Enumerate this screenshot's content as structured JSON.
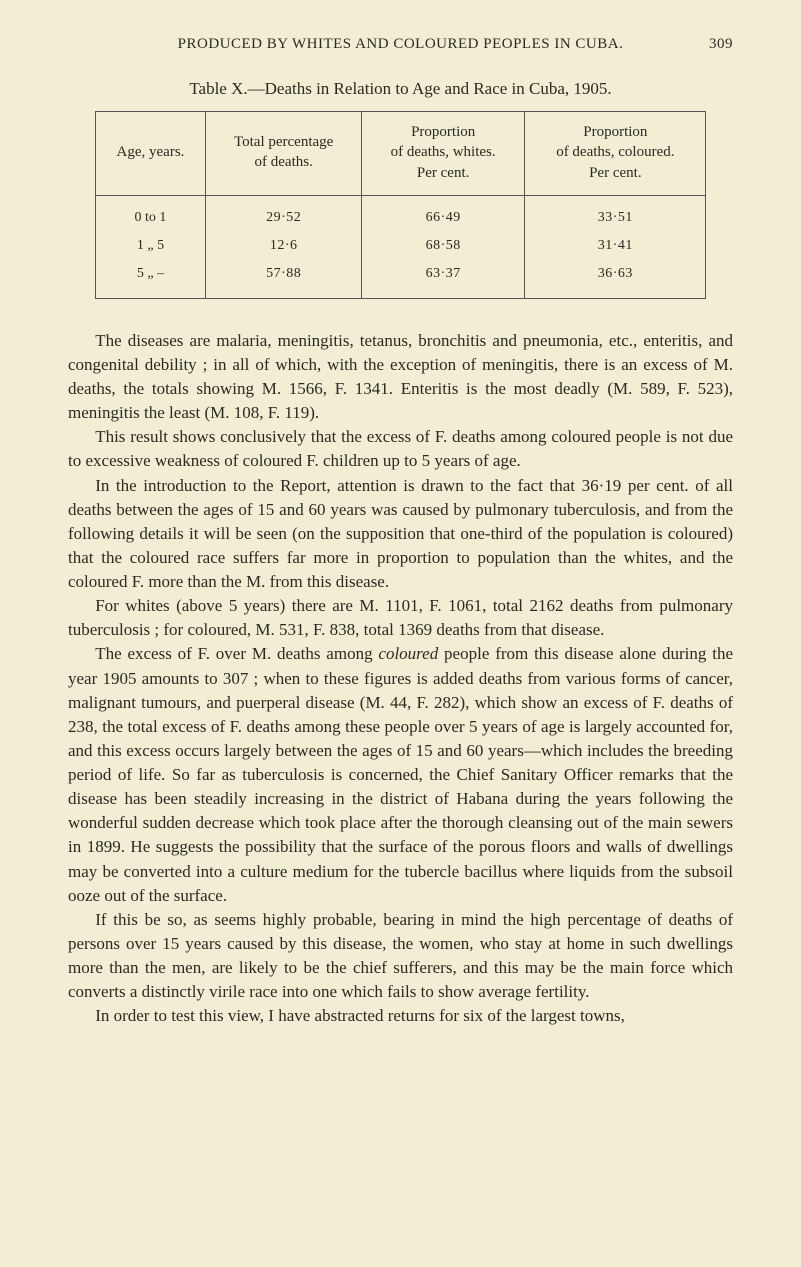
{
  "page": {
    "running_head": "PRODUCED BY WHITES AND COLOURED PEOPLES IN CUBA.",
    "page_number": "309"
  },
  "table": {
    "caption": "Table X.—Deaths in Relation to Age and Race in Cuba, 1905.",
    "columns": [
      "Age, years.",
      "Total percentage\nof deaths.",
      "Proportion\nof deaths, whites.\nPer cent.",
      "Proportion\nof deaths, coloured.\nPer cent."
    ],
    "rows": [
      [
        "0 to 1",
        "29·52",
        "66·49",
        "33·51"
      ],
      [
        "1  „  5",
        "12·6",
        "68·58",
        "31·41"
      ],
      [
        "5  „  –",
        "57·88",
        "63·37",
        "36·63"
      ]
    ],
    "style": {
      "type": "table",
      "border_color": "#555555",
      "background_color": "#f2eed4",
      "header_fontsize": 15,
      "cell_fontsize": 14,
      "col_widths_pct": [
        18,
        27,
        27,
        28
      ],
      "text_color": "#2a2a22"
    }
  },
  "body": {
    "paragraphs": [
      "The diseases are malaria, meningitis, tetanus, bronchitis and pneumonia, etc., enteritis, and congenital debility ; in all of which, with the exception of meningitis, there is an excess of M. deaths, the totals showing M. 1566, F. 1341. Enteritis is the most deadly (M. 589, F. 523), meningitis the least (M. 108, F. 119).",
      "This result shows conclusively that the excess of F. deaths among coloured people is not due to excessive weakness of coloured F. children up to 5 years of age.",
      "In the introduction to the Report, attention is drawn to the fact that 36·19 per cent. of all deaths between the ages of 15 and 60 years was caused by pulmonary tuberculosis, and from the following details it will be seen (on the supposition that one-third of the population is coloured) that the coloured race suffers far more in proportion to population than the whites, and the coloured F. more than the M. from this disease.",
      "For whites (above 5 years) there are M. 1101, F. 1061, total 2162 deaths from pulmonary tuberculosis ; for coloured, M. 531, F. 838, total 1369 deaths from that disease.",
      "The excess of F. over M. deaths among coloured people from this disease alone during the year 1905 amounts to 307 ; when to these figures is added deaths from various forms of cancer, malignant tumours, and puerperal disease (M. 44, F. 282), which show an excess of F. deaths of 238, the total excess of F. deaths among these people over 5 years of age is largely accounted for, and this excess occurs largely between the ages of 15 and 60 years—which includes the breeding period of life. So far as tuberculosis is concerned, the Chief Sanitary Officer remarks that the disease has been steadily increasing in the district of Habana during the years following the wonderful sudden decrease which took place after the thorough cleansing out of the main sewers in 1899. He suggests the possibility that the surface of the porous floors and walls of dwellings may be converted into a culture medium for the tubercle bacillus where liquids from the subsoil ooze out of the surface.",
      "If this be so, as seems highly probable, bearing in mind the high percentage of deaths of persons over 15 years caused by this disease, the women, who stay at home in such dwellings more than the men, are likely to be the chief sufferers, and this may be the main force which converts a distinctly virile race into one which fails to show average fertility.",
      "In order to test this view, I have abstracted returns for six of the largest towns,"
    ],
    "italic_word_p5": "coloured"
  },
  "style": {
    "page_background": "#f2eed4",
    "text_color": "#2a2a22",
    "body_fontsize": 17,
    "line_height": 1.42,
    "font_family": "Times New Roman serif"
  }
}
